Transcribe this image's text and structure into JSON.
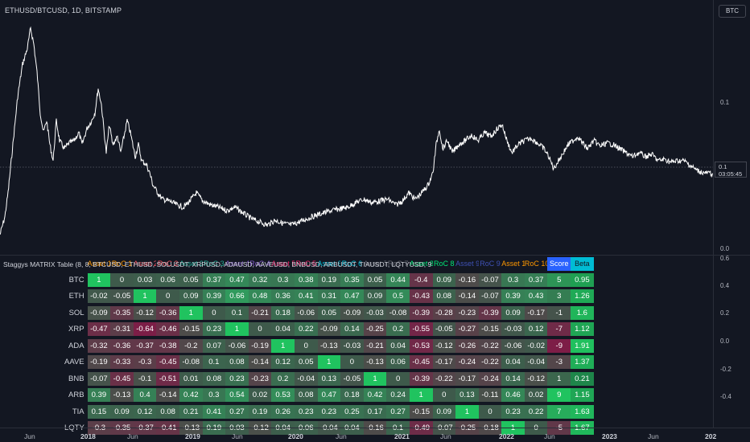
{
  "header": {
    "symbol_title": "ETHUSD/BTCUSD, 1D, BITSTAMP",
    "currency_button": "BTC"
  },
  "price_scale": {
    "labels": [
      "0.1",
      "0.0"
    ],
    "current_value": "0.1",
    "countdown": "03:05:45"
  },
  "lower_scale": {
    "labels": [
      "0.6",
      "0.4",
      "0.2",
      "0.0",
      "-0.2",
      "-0.4"
    ]
  },
  "indicator": {
    "label": "Staggys MATRIX Table (8, 8, BTCUSD, ETHUSD, SOLUSDT, XRPUSD, ADAUSD, AAVEUSD, BNBUSD, ARBUSDT, TIAUSDT, LQTYUSD, 9, TOTAL)"
  },
  "matrix": {
    "columns": [
      "",
      "Asset 1",
      "RoC 1",
      "Asset 2",
      "RoC 2",
      "Asset 3",
      "RoC 3",
      "Asset 4",
      "RoC 4",
      "Asset 5",
      "RoC 5",
      "Asset 6",
      "RoC 6",
      "Asset 7",
      "RoC 7",
      "Asset 8",
      "RoC 8",
      "Asset 9",
      "RoC 9",
      "Asset 10",
      "RoC 10",
      "Score",
      "Beta"
    ],
    "header_colors": [
      "#131722",
      "#ff9800",
      "#ff9800",
      "#f7525f",
      "#f7525f",
      "#22ab94",
      "#22ab94",
      "#7e57c2",
      "#7e57c2",
      "#e91e63",
      "#e91e63",
      "#00bcd4",
      "#00bcd4",
      "#5d606b",
      "#5d606b",
      "#00e676",
      "#00e676",
      "#3f51b5",
      "#3f51b5",
      "#ff9800",
      "#ff9800",
      "#ffffff",
      "#00bcd4"
    ],
    "rows": [
      {
        "asset": "BTC",
        "values": [
          "1",
          "0",
          "0.03",
          "0.06",
          "0.05",
          "0.37",
          "0.47",
          "0.32",
          "0.3",
          "0.38",
          "0.19",
          "0.35",
          "0.05",
          "0.44",
          "-0.4",
          "0.09",
          "-0.16",
          "-0.07",
          "0.3",
          "0.37",
          "5",
          "0.95"
        ]
      },
      {
        "asset": "ETH",
        "values": [
          "-0.02",
          "-0.05",
          "1",
          "0",
          "0.09",
          "0.39",
          "0.66",
          "0.48",
          "0.36",
          "0.41",
          "0.31",
          "0.47",
          "0.09",
          "0.5",
          "-0.43",
          "0.08",
          "-0.14",
          "-0.07",
          "0.39",
          "0.43",
          "3",
          "1.26"
        ]
      },
      {
        "asset": "SOL",
        "values": [
          "-0.09",
          "-0.35",
          "-0.12",
          "-0.36",
          "1",
          "0",
          "0.1",
          "-0.21",
          "0.18",
          "-0.06",
          "0.05",
          "-0.09",
          "-0.03",
          "-0.08",
          "-0.39",
          "-0.28",
          "-0.23",
          "-0.39",
          "0.09",
          "-0.17",
          "-1",
          "1.6"
        ]
      },
      {
        "asset": "XRP",
        "values": [
          "-0.47",
          "-0.31",
          "-0.64",
          "-0.46",
          "-0.15",
          "0.23",
          "1",
          "0",
          "0.04",
          "0.22",
          "-0.09",
          "0.14",
          "-0.25",
          "0.2",
          "-0.55",
          "-0.05",
          "-0.27",
          "-0.15",
          "-0.03",
          "0.12",
          "-7",
          "1.12"
        ]
      },
      {
        "asset": "ADA",
        "values": [
          "-0.32",
          "-0.36",
          "-0.37",
          "-0.38",
          "-0.2",
          "0.07",
          "-0.06",
          "-0.19",
          "1",
          "0",
          "-0.13",
          "-0.03",
          "-0.21",
          "0.04",
          "-0.53",
          "-0.12",
          "-0.26",
          "-0.22",
          "-0.06",
          "-0.02",
          "-9",
          "1.91"
        ]
      },
      {
        "asset": "AAVE",
        "values": [
          "-0.19",
          "-0.33",
          "-0.3",
          "-0.45",
          "-0.08",
          "0.1",
          "0.08",
          "-0.14",
          "0.12",
          "0.05",
          "1",
          "0",
          "-0.13",
          "0.06",
          "-0.45",
          "-0.17",
          "-0.24",
          "-0.22",
          "0.04",
          "-0.04",
          "-3",
          "1.37"
        ]
      },
      {
        "asset": "BNB",
        "values": [
          "-0.07",
          "-0.45",
          "-0.1",
          "-0.51",
          "0.01",
          "0.08",
          "0.23",
          "-0.23",
          "0.2",
          "-0.04",
          "0.13",
          "-0.05",
          "1",
          "0",
          "-0.39",
          "-0.22",
          "-0.17",
          "-0.24",
          "0.14",
          "-0.12",
          "1",
          "0.21"
        ]
      },
      {
        "asset": "ARB",
        "values": [
          "0.39",
          "-0.13",
          "0.4",
          "-0.14",
          "0.42",
          "0.3",
          "0.54",
          "0.02",
          "0.53",
          "0.08",
          "0.47",
          "0.18",
          "0.42",
          "0.24",
          "1",
          "0",
          "0.13",
          "-0.11",
          "0.46",
          "0.02",
          "9",
          "1.15"
        ]
      },
      {
        "asset": "TIA",
        "values": [
          "0.15",
          "0.09",
          "0.12",
          "0.08",
          "0.21",
          "0.41",
          "0.27",
          "0.19",
          "0.26",
          "0.23",
          "0.23",
          "0.25",
          "0.17",
          "0.27",
          "-0.15",
          "0.09",
          "1",
          "0",
          "0.23",
          "0.22",
          "7",
          "1.63"
        ]
      },
      {
        "asset": "LQTY",
        "values": [
          "-0.3",
          "-0.35",
          "-0.37",
          "-0.41",
          "-0.13",
          "0.19",
          "0.03",
          "-0.12",
          "0.04",
          "0.06",
          "-0.04",
          "0.04",
          "-0.16",
          "0.1",
          "-0.49",
          "-0.07",
          "-0.25",
          "-0.18",
          "1",
          "0",
          "-5",
          "1.67"
        ]
      }
    ]
  },
  "time_axis": {
    "labels": [
      {
        "text": "Jun",
        "year": false
      },
      {
        "text": "2018",
        "year": true
      },
      {
        "text": "Jun",
        "year": false
      },
      {
        "text": "2019",
        "year": true
      },
      {
        "text": "Jun",
        "year": false
      },
      {
        "text": "2020",
        "year": true
      },
      {
        "text": "Jun",
        "year": false
      },
      {
        "text": "2021",
        "year": true
      },
      {
        "text": "Jun",
        "year": false
      },
      {
        "text": "2022",
        "year": true
      },
      {
        "text": "Jun",
        "year": false
      },
      {
        "text": "2023",
        "year": true
      },
      {
        "text": "Jun",
        "year": false
      },
      {
        "text": "202",
        "year": true
      }
    ]
  },
  "colors": {
    "background": "#131722",
    "price_line": "#ffffff",
    "grid": "#2a2e39",
    "pos_strong": "#20c35f",
    "neg_strong": "#7d1d47",
    "neutral": "#3e5a4b",
    "score_bg": "#2962ff",
    "beta_bg": "#00bcd4"
  }
}
